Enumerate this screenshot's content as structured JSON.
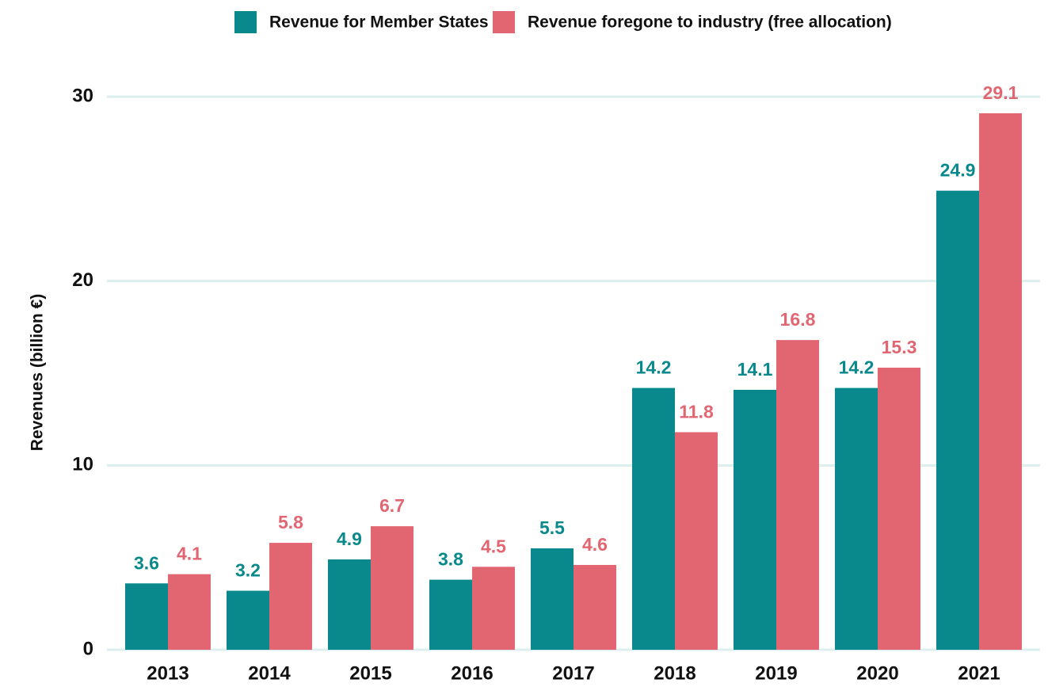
{
  "chart_data": {
    "type": "bar",
    "y_label": "Revenues (billion €)",
    "categories": [
      "2013",
      "2014",
      "2015",
      "2016",
      "2017",
      "2018",
      "2019",
      "2020",
      "2021"
    ],
    "series": [
      {
        "name": "Revenue for Member States",
        "color": "#0a898c",
        "values": [
          3.6,
          3.2,
          4.9,
          3.8,
          5.5,
          14.2,
          14.1,
          14.2,
          24.9
        ]
      },
      {
        "name": "Revenue foregone to industry (free allocation)",
        "color": "#e26672",
        "values": [
          4.1,
          5.8,
          6.7,
          4.5,
          4.6,
          11.8,
          16.8,
          15.3,
          29.1
        ]
      }
    ],
    "ylim": [
      0,
      30
    ],
    "yticks": [
      0,
      10,
      20,
      30
    ],
    "grid": true,
    "legend": "top"
  }
}
